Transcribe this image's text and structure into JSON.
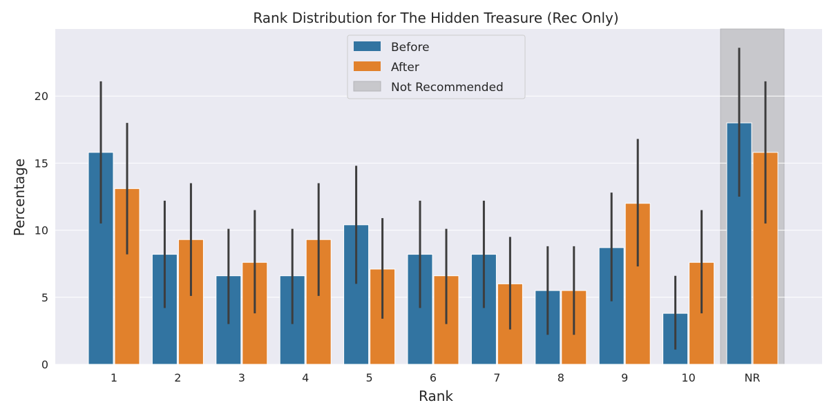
{
  "chart_data": {
    "type": "bar",
    "title": "Rank Distribution for The Hidden Treasure (Rec Only)",
    "xlabel": "Rank",
    "ylabel": "Percentage",
    "categories": [
      "1",
      "2",
      "3",
      "4",
      "5",
      "6",
      "7",
      "8",
      "9",
      "10",
      "NR"
    ],
    "ylim": [
      0,
      25
    ],
    "yticks": [
      0,
      5,
      10,
      15,
      20
    ],
    "grid": true,
    "legend_position": "top-center",
    "series": [
      {
        "name": "Before",
        "color": "#3274a1",
        "values": [
          15.8,
          8.2,
          6.6,
          6.6,
          10.4,
          8.2,
          8.2,
          5.5,
          8.7,
          3.8,
          18.0
        ],
        "ci_low": [
          10.5,
          4.2,
          3.0,
          3.0,
          6.0,
          4.2,
          4.2,
          2.2,
          4.7,
          1.1,
          12.5
        ],
        "ci_high": [
          21.1,
          12.2,
          10.1,
          10.1,
          14.8,
          12.2,
          12.2,
          8.8,
          12.8,
          6.6,
          23.6
        ]
      },
      {
        "name": "After",
        "color": "#e1812c",
        "values": [
          13.1,
          9.3,
          7.6,
          9.3,
          7.1,
          6.6,
          6.0,
          5.5,
          12.0,
          7.6,
          15.8
        ],
        "ci_low": [
          8.2,
          5.1,
          3.8,
          5.1,
          3.4,
          3.0,
          2.6,
          2.2,
          7.3,
          3.8,
          10.5
        ],
        "ci_high": [
          18.0,
          13.5,
          11.5,
          13.5,
          10.9,
          10.1,
          9.5,
          8.8,
          16.8,
          11.5,
          21.1
        ]
      }
    ],
    "highlight": {
      "category": "NR",
      "label": "Not Recommended",
      "color": "#c8c8cc"
    }
  }
}
